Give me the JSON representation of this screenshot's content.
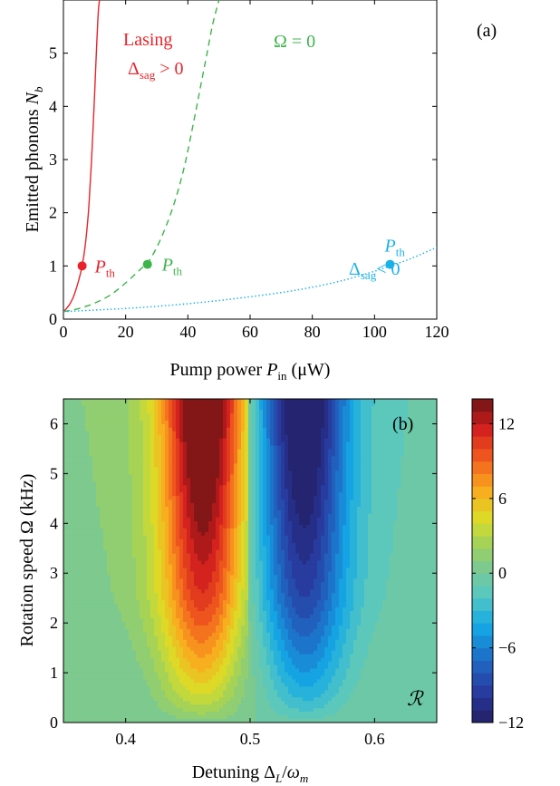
{
  "chart_data": [
    {
      "panel": "(a)",
      "type": "line",
      "xlabel": {
        "main": "Pump power",
        "var": "P",
        "sub": "in",
        "unit": "(μW)"
      },
      "ylabel": {
        "main": "Emitted phonons",
        "var": "N",
        "sub": "b"
      },
      "xlim": [
        0,
        120
      ],
      "ylim": [
        0,
        6
      ],
      "xticks": [
        "0",
        "20",
        "40",
        "60",
        "80",
        "100",
        "120"
      ],
      "yticks": [
        "0",
        "1",
        "2",
        "3",
        "4",
        "5"
      ],
      "colors": {
        "red": "#e8232a",
        "green": "#3cb44a",
        "blue": "#1ab0e8"
      },
      "series": [
        {
          "style": "solid",
          "color": "red",
          "x": [
            0,
            0.5,
            1,
            2,
            3,
            4,
            5,
            6,
            7,
            8,
            8.5,
            9,
            9.5,
            10,
            10.5,
            11,
            11.3,
            11.6
          ],
          "y": [
            0.14,
            0.17,
            0.2,
            0.28,
            0.39,
            0.55,
            0.75,
            1.0,
            1.38,
            1.98,
            2.45,
            2.95,
            3.55,
            4.2,
            4.9,
            5.55,
            5.85,
            6.0
          ]
        },
        {
          "style": "dashed",
          "color": "green",
          "x": [
            0,
            5,
            10,
            15,
            20,
            25,
            27,
            30,
            33,
            36,
            39,
            42,
            44,
            46,
            48,
            50
          ],
          "y": [
            0.14,
            0.2,
            0.3,
            0.45,
            0.68,
            0.95,
            1.05,
            1.35,
            1.75,
            2.25,
            2.9,
            3.75,
            4.35,
            4.95,
            5.55,
            6.0
          ]
        },
        {
          "style": "dotted",
          "color": "blue",
          "x": [
            0,
            10,
            20,
            30,
            40,
            50,
            60,
            70,
            80,
            90,
            100,
            105,
            110,
            115,
            120
          ],
          "y": [
            0.14,
            0.17,
            0.2,
            0.24,
            0.29,
            0.35,
            0.42,
            0.5,
            0.6,
            0.73,
            0.9,
            1.0,
            1.1,
            1.22,
            1.35
          ]
        }
      ],
      "points": [
        {
          "x": 6,
          "y": 1.0,
          "color": "red",
          "label": "P",
          "sub": "th"
        },
        {
          "x": 27,
          "y": 1.03,
          "color": "green",
          "label": "P",
          "sub": "th"
        },
        {
          "x": 105,
          "y": 1.03,
          "color": "blue",
          "label": "P",
          "sub": "th"
        }
      ],
      "annotations": {
        "lasing": "Lasing",
        "delta_pos": {
          "sym": "Δ",
          "sub": "sag",
          "rest": " > 0"
        },
        "omega0": "Ω  =  0",
        "delta_neg": {
          "sym": "Δ",
          "sub": "sag",
          "rest": "< 0"
        }
      }
    },
    {
      "panel": "(b)",
      "type": "heatmap",
      "xlabel": {
        "main": "Detuning",
        "var": "Δ",
        "sub": "L",
        "slash": "/",
        "var2": "ω",
        "sub2": "m"
      },
      "ylabel": "Rotation speed Ω (kHz)",
      "xlim": [
        0.35,
        0.65
      ],
      "ylim": [
        0,
        6.5
      ],
      "xticks": [
        "0.4",
        "0.5",
        "0.6"
      ],
      "yticks": [
        "0",
        "1",
        "2",
        "3",
        "4",
        "5",
        "6"
      ],
      "colorbar": {
        "min": -12,
        "max": 14,
        "ticks": [
          "12",
          "6",
          "0",
          "−6",
          "−12"
        ]
      },
      "corner_label": "ℛ",
      "description": "R(Δ_L/ω_m, Ω): positive lobe (red) left of 0.5 peaking near 0.45–0.47 at high Ω, negative lobe (blue) right of 0.5 peaking near 0.53–0.56, zero near Ω = 0"
    }
  ]
}
